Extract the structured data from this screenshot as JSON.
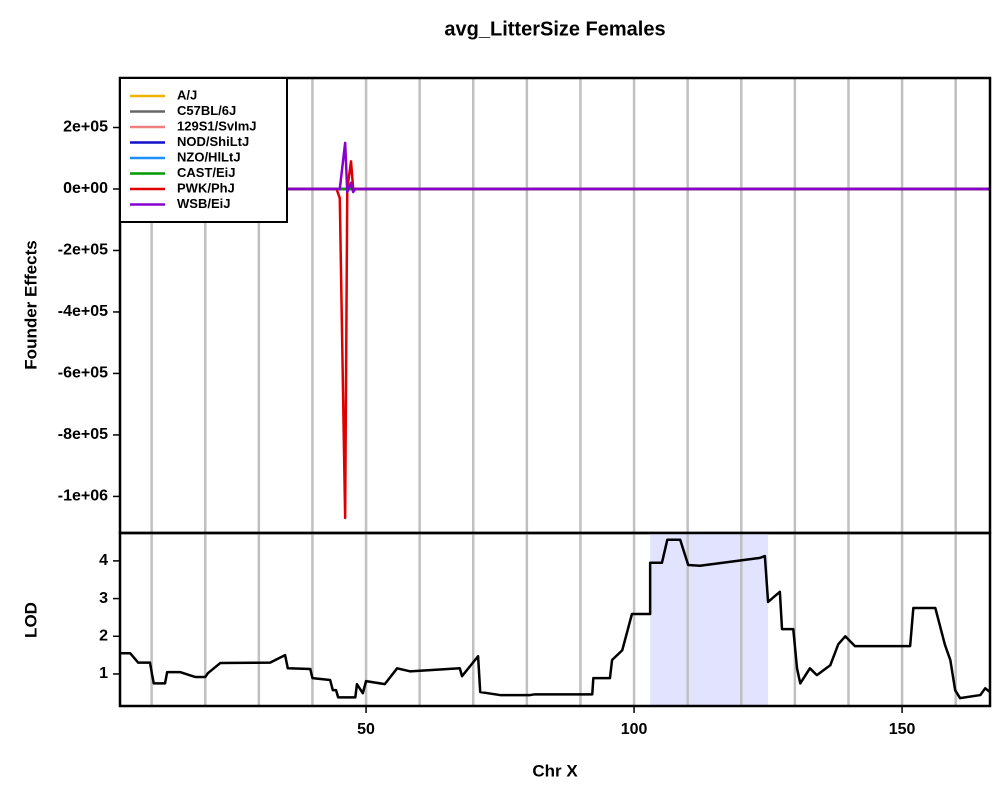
{
  "chart_data": [
    {
      "type": "line",
      "title": "avg_LitterSize Females",
      "ylabel": "Founder Effects",
      "x": [
        4.1,
        44.5,
        45.1,
        46.1,
        46.5,
        47.2,
        47.6,
        48,
        166.4
      ],
      "series": [
        {
          "name": "A/J",
          "color": "#f0b400",
          "values": [
            0,
            0,
            0,
            0,
            0,
            0,
            0,
            0,
            0
          ]
        },
        {
          "name": "C57BL/6J",
          "color": "#666666",
          "values": [
            0,
            0,
            0,
            0,
            0,
            0,
            0,
            0,
            0
          ]
        },
        {
          "name": "129S1/SvImJ",
          "color": "#f08080",
          "values": [
            0,
            0,
            0,
            0,
            0,
            0,
            0,
            0,
            0
          ]
        },
        {
          "name": "NOD/ShiLtJ",
          "color": "#1010c8",
          "values": [
            0,
            0,
            0,
            0,
            0,
            0,
            0,
            0,
            0
          ]
        },
        {
          "name": "NZO/HlLtJ",
          "color": "#1e90ff",
          "values": [
            0,
            0,
            0,
            0,
            0,
            0,
            0,
            0,
            0
          ]
        },
        {
          "name": "CAST/EiJ",
          "color": "#009900",
          "values": [
            0,
            0,
            0,
            0,
            0,
            0,
            0,
            0,
            0
          ]
        },
        {
          "name": "PWK/PhJ",
          "color": "#dd0000",
          "values": [
            0,
            0,
            -30000,
            -1070000,
            0,
            90000,
            0,
            0,
            0
          ]
        },
        {
          "name": "WSB/EiJ",
          "color": "#8800cc",
          "values": [
            0,
            0,
            0,
            150000,
            -10000,
            20000,
            -10000,
            0,
            0
          ]
        }
      ],
      "xlim": [
        4.1,
        166.4
      ],
      "ylim": [
        -1119000,
        361000
      ],
      "yticks": [
        {
          "value": 200000,
          "label": "2e+05"
        },
        {
          "value": 0,
          "label": "0e+00"
        },
        {
          "value": -200000,
          "label": "-2e+05"
        },
        {
          "value": -400000,
          "label": "-4e+05"
        },
        {
          "value": -600000,
          "label": "-6e+05"
        },
        {
          "value": -800000,
          "label": "-8e+05"
        },
        {
          "value": -1000000,
          "label": "-1e+06"
        }
      ],
      "xgrid": [
        10,
        20,
        30,
        40,
        50,
        60,
        70,
        80,
        90,
        100,
        110,
        120,
        130,
        140,
        150,
        160
      ],
      "legend": "top-left"
    },
    {
      "type": "line",
      "ylabel": "LOD",
      "xlabel": "Chr X",
      "color": "#000000",
      "x": [
        4.1,
        6,
        7.5,
        9.7,
        10.1,
        10.4,
        12.5,
        12.9,
        15.3,
        18.1,
        20,
        20.5,
        22.8,
        32.1,
        34.9,
        35.4,
        39.6,
        40,
        43.3,
        43.8,
        44.4,
        44.8,
        48,
        48.3,
        49.4,
        50,
        53.5,
        55.8,
        58.2,
        67.5,
        67.9,
        70.9,
        71.3,
        75,
        80.6,
        81.5,
        92.2,
        92.4,
        95.5,
        95.9,
        97.8,
        99.6,
        103,
        103,
        105.2,
        106.2,
        108.6,
        110.1,
        112.3,
        123.5,
        124.4,
        125,
        127.2,
        127.6,
        129.7,
        130.4,
        131,
        132.8,
        134.1,
        136.6,
        138.1,
        139.4,
        141.2,
        151.5,
        152.1,
        156.2,
        158,
        159,
        159.9,
        160.8,
        164.6,
        165.5,
        166.4
      ],
      "values": [
        1.55,
        1.55,
        1.3,
        1.3,
        0.97,
        0.75,
        0.75,
        1.05,
        1.05,
        0.92,
        0.92,
        1.02,
        1.29,
        1.3,
        1.5,
        1.15,
        1.13,
        0.89,
        0.84,
        0.57,
        0.57,
        0.38,
        0.38,
        0.73,
        0.49,
        0.81,
        0.73,
        1.15,
        1.07,
        1.15,
        0.94,
        1.47,
        0.52,
        0.44,
        0.44,
        0.46,
        0.46,
        0.89,
        0.89,
        1.37,
        1.63,
        2.59,
        2.59,
        3.95,
        3.95,
        4.56,
        4.56,
        3.89,
        3.87,
        4.08,
        4.13,
        2.91,
        3.18,
        2.19,
        2.19,
        1.15,
        0.75,
        1.15,
        0.97,
        1.23,
        1.79,
        2,
        1.74,
        1.74,
        2.75,
        2.75,
        1.77,
        1.37,
        0.57,
        0.36,
        0.44,
        0.62,
        0.52
      ],
      "xlim": [
        4.1,
        166.4
      ],
      "ylim": [
        0.15,
        4.74
      ],
      "yticks": [
        1,
        2,
        3,
        4
      ],
      "xticks": [
        50,
        100,
        150
      ],
      "xgrid": [
        10,
        20,
        30,
        40,
        50,
        60,
        70,
        80,
        90,
        100,
        110,
        120,
        130,
        140,
        150,
        160
      ],
      "interval": [
        103,
        125
      ],
      "interval_color": "#e2e4ff"
    }
  ]
}
